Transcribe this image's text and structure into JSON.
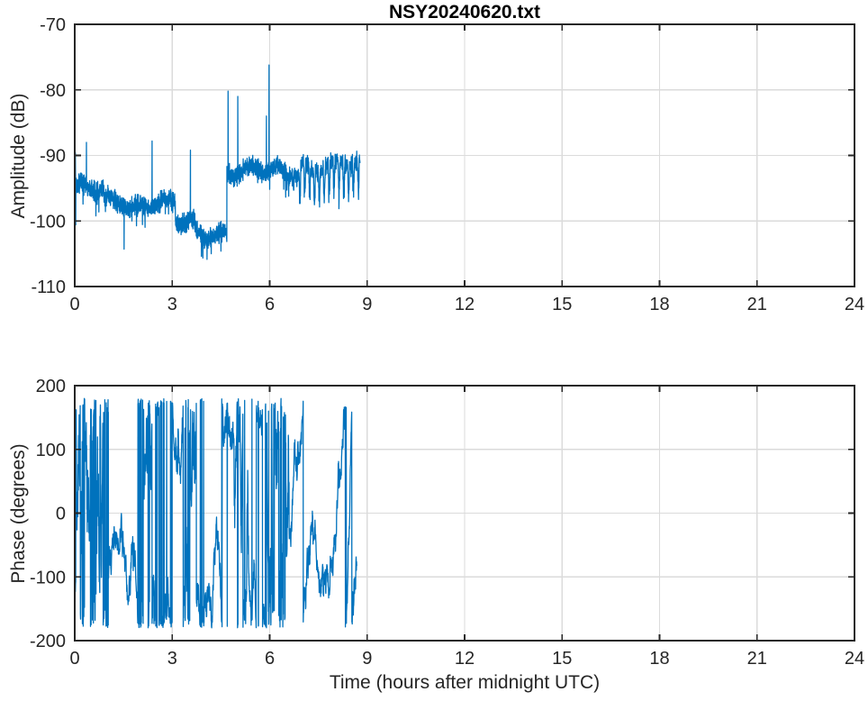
{
  "figure": {
    "background": "#ffffff",
    "axis_color": "#262626",
    "grid_color": "#dbdbdb",
    "tick_label_color": "#262626",
    "line_color": "#0072BD"
  },
  "chart_data": [
    {
      "id": "amplitude",
      "type": "line",
      "title": "NSY20240620.txt",
      "xlabel": "",
      "ylabel": "Amplitude (dB)",
      "xlim": [
        0,
        24
      ],
      "ylim": [
        -110,
        -70
      ],
      "xticks": [
        0,
        3,
        6,
        9,
        12,
        15,
        18,
        21,
        24
      ],
      "yticks": [
        -110,
        -100,
        -90,
        -80,
        -70
      ],
      "grid": true,
      "legend": null,
      "series": [
        {
          "name": "amplitude",
          "color": "#0072BD",
          "data_start_hour": 0.0,
          "data_end_hour": 8.78,
          "sample_step_hours": 0.004,
          "noise_db": 1.8,
          "baseline_segments": [
            {
              "t0": 0.0,
              "t1": 0.9,
              "level": -95.2
            },
            {
              "t0": 0.9,
              "t1": 1.6,
              "level": -96.6
            },
            {
              "t0": 1.6,
              "t1": 3.1,
              "level": -97.6
            },
            {
              "t0": 3.1,
              "t1": 3.7,
              "level": -100.3
            },
            {
              "t0": 3.7,
              "t1": 4.68,
              "level": -101.8
            },
            {
              "t0": 4.68,
              "t1": 6.9,
              "level": -92.4
            },
            {
              "t0": 6.9,
              "t1": 8.78,
              "level": -91.6
            }
          ],
          "spikes_up": [
            {
              "t": 0.02,
              "value": -89.6
            },
            {
              "t": 0.36,
              "value": -88.0
            },
            {
              "t": 2.38,
              "value": -87.8
            },
            {
              "t": 3.56,
              "value": -89.2
            },
            {
              "t": 4.72,
              "value": -80.2
            },
            {
              "t": 5.02,
              "value": -81.0
            },
            {
              "t": 5.9,
              "value": -84.0
            },
            {
              "t": 5.98,
              "value": -76.2
            }
          ],
          "spikes_down": [
            {
              "t": 0.03,
              "value": -100.6
            },
            {
              "t": 1.52,
              "value": -104.3
            },
            {
              "t": 3.9,
              "value": -105.4
            },
            {
              "t": 4.2,
              "value": -105.0
            },
            {
              "t": 4.5,
              "value": -104.6
            }
          ],
          "comb_dips": {
            "start_hour": 6.9,
            "period_hours": 0.15,
            "depth_db": [
              2.5,
              6.0
            ]
          }
        }
      ]
    },
    {
      "id": "phase",
      "type": "line",
      "title": "",
      "xlabel": "Time (hours after midnight UTC)",
      "ylabel": "Phase (degrees)",
      "xlim": [
        0,
        24
      ],
      "ylim": [
        -200,
        200
      ],
      "xticks": [
        0,
        3,
        6,
        9,
        12,
        15,
        18,
        21,
        24
      ],
      "yticks": [
        -200,
        -100,
        0,
        100,
        200
      ],
      "grid": true,
      "legend": null,
      "series": [
        {
          "name": "phase",
          "color": "#0072BD",
          "wrap_degrees": 180,
          "data_start_hour": 0.0,
          "data_end_hour": 8.68,
          "sample_step_hours": 0.005,
          "start_value_degrees": 160,
          "volatility_segments": [
            {
              "t0": 0.0,
              "t1": 1.05,
              "sigma": 110
            },
            {
              "t0": 1.05,
              "t1": 2.05,
              "sigma": 26
            },
            {
              "t0": 2.05,
              "t1": 2.55,
              "sigma": 80
            },
            {
              "t0": 2.55,
              "t1": 3.35,
              "sigma": 30
            },
            {
              "t0": 3.35,
              "t1": 3.75,
              "sigma": 100
            },
            {
              "t0": 3.75,
              "t1": 4.9,
              "sigma": 30
            },
            {
              "t0": 4.9,
              "t1": 5.35,
              "sigma": 75
            },
            {
              "t0": 5.35,
              "t1": 5.9,
              "sigma": 28
            },
            {
              "t0": 5.9,
              "t1": 6.6,
              "sigma": 105
            },
            {
              "t0": 6.6,
              "t1": 8.35,
              "sigma": 26
            },
            {
              "t0": 8.35,
              "t1": 8.68,
              "sigma": 25,
              "drift": 1500
            }
          ]
        }
      ]
    }
  ]
}
